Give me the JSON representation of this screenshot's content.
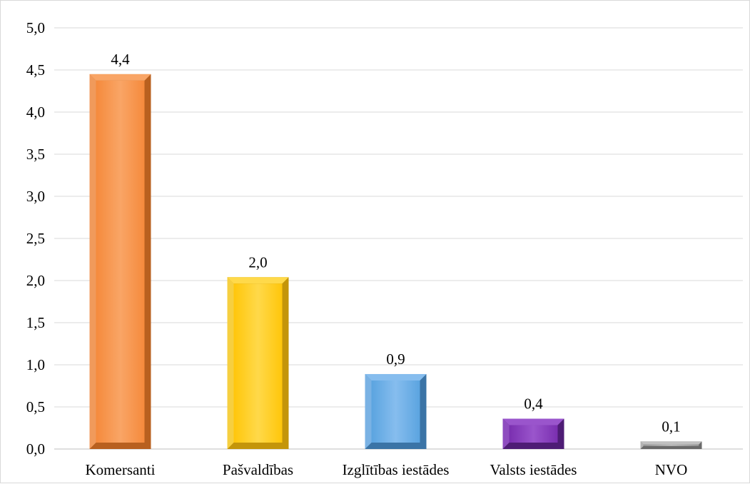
{
  "chart_data": {
    "type": "bar",
    "title": "",
    "xlabel": "",
    "ylabel": "",
    "categories": [
      "Komersanti",
      "Pašvaldības",
      "Izglītības iestādes",
      "Valsts iestādes",
      "NVO"
    ],
    "values": [
      4.45,
      2.04,
      0.89,
      0.36,
      0.09
    ],
    "data_labels": [
      "4,4",
      "2,0",
      "0,9",
      "0,4",
      "0,1"
    ],
    "ylim": [
      0,
      5
    ],
    "yticks": [
      0,
      0.5,
      1.0,
      1.5,
      2.0,
      2.5,
      3.0,
      3.5,
      4.0,
      4.5,
      5.0
    ],
    "ytick_labels": [
      "0,0",
      "0,5",
      "1,0",
      "1,5",
      "2,0",
      "2,5",
      "3,0",
      "3,5",
      "4,0",
      "4,5",
      "5,0"
    ],
    "grid": true,
    "legend": "none",
    "bar_colors": [
      {
        "face": "#f58a3c",
        "light": "#f9a566",
        "dark": "#b8601f"
      },
      {
        "face": "#ffc60a",
        "light": "#ffd94a",
        "dark": "#c4950a"
      },
      {
        "face": "#5ba4e0",
        "light": "#86bdee",
        "dark": "#3b74a6"
      },
      {
        "face": "#7a2fb0",
        "light": "#9a55cc",
        "dark": "#4e1c75"
      },
      {
        "face": "#9a9a9a",
        "light": "#c0c0c0",
        "dark": "#6a6a6a"
      }
    ],
    "grid_color": "#d9d9d9",
    "axis_color": "#bfbfbf"
  }
}
